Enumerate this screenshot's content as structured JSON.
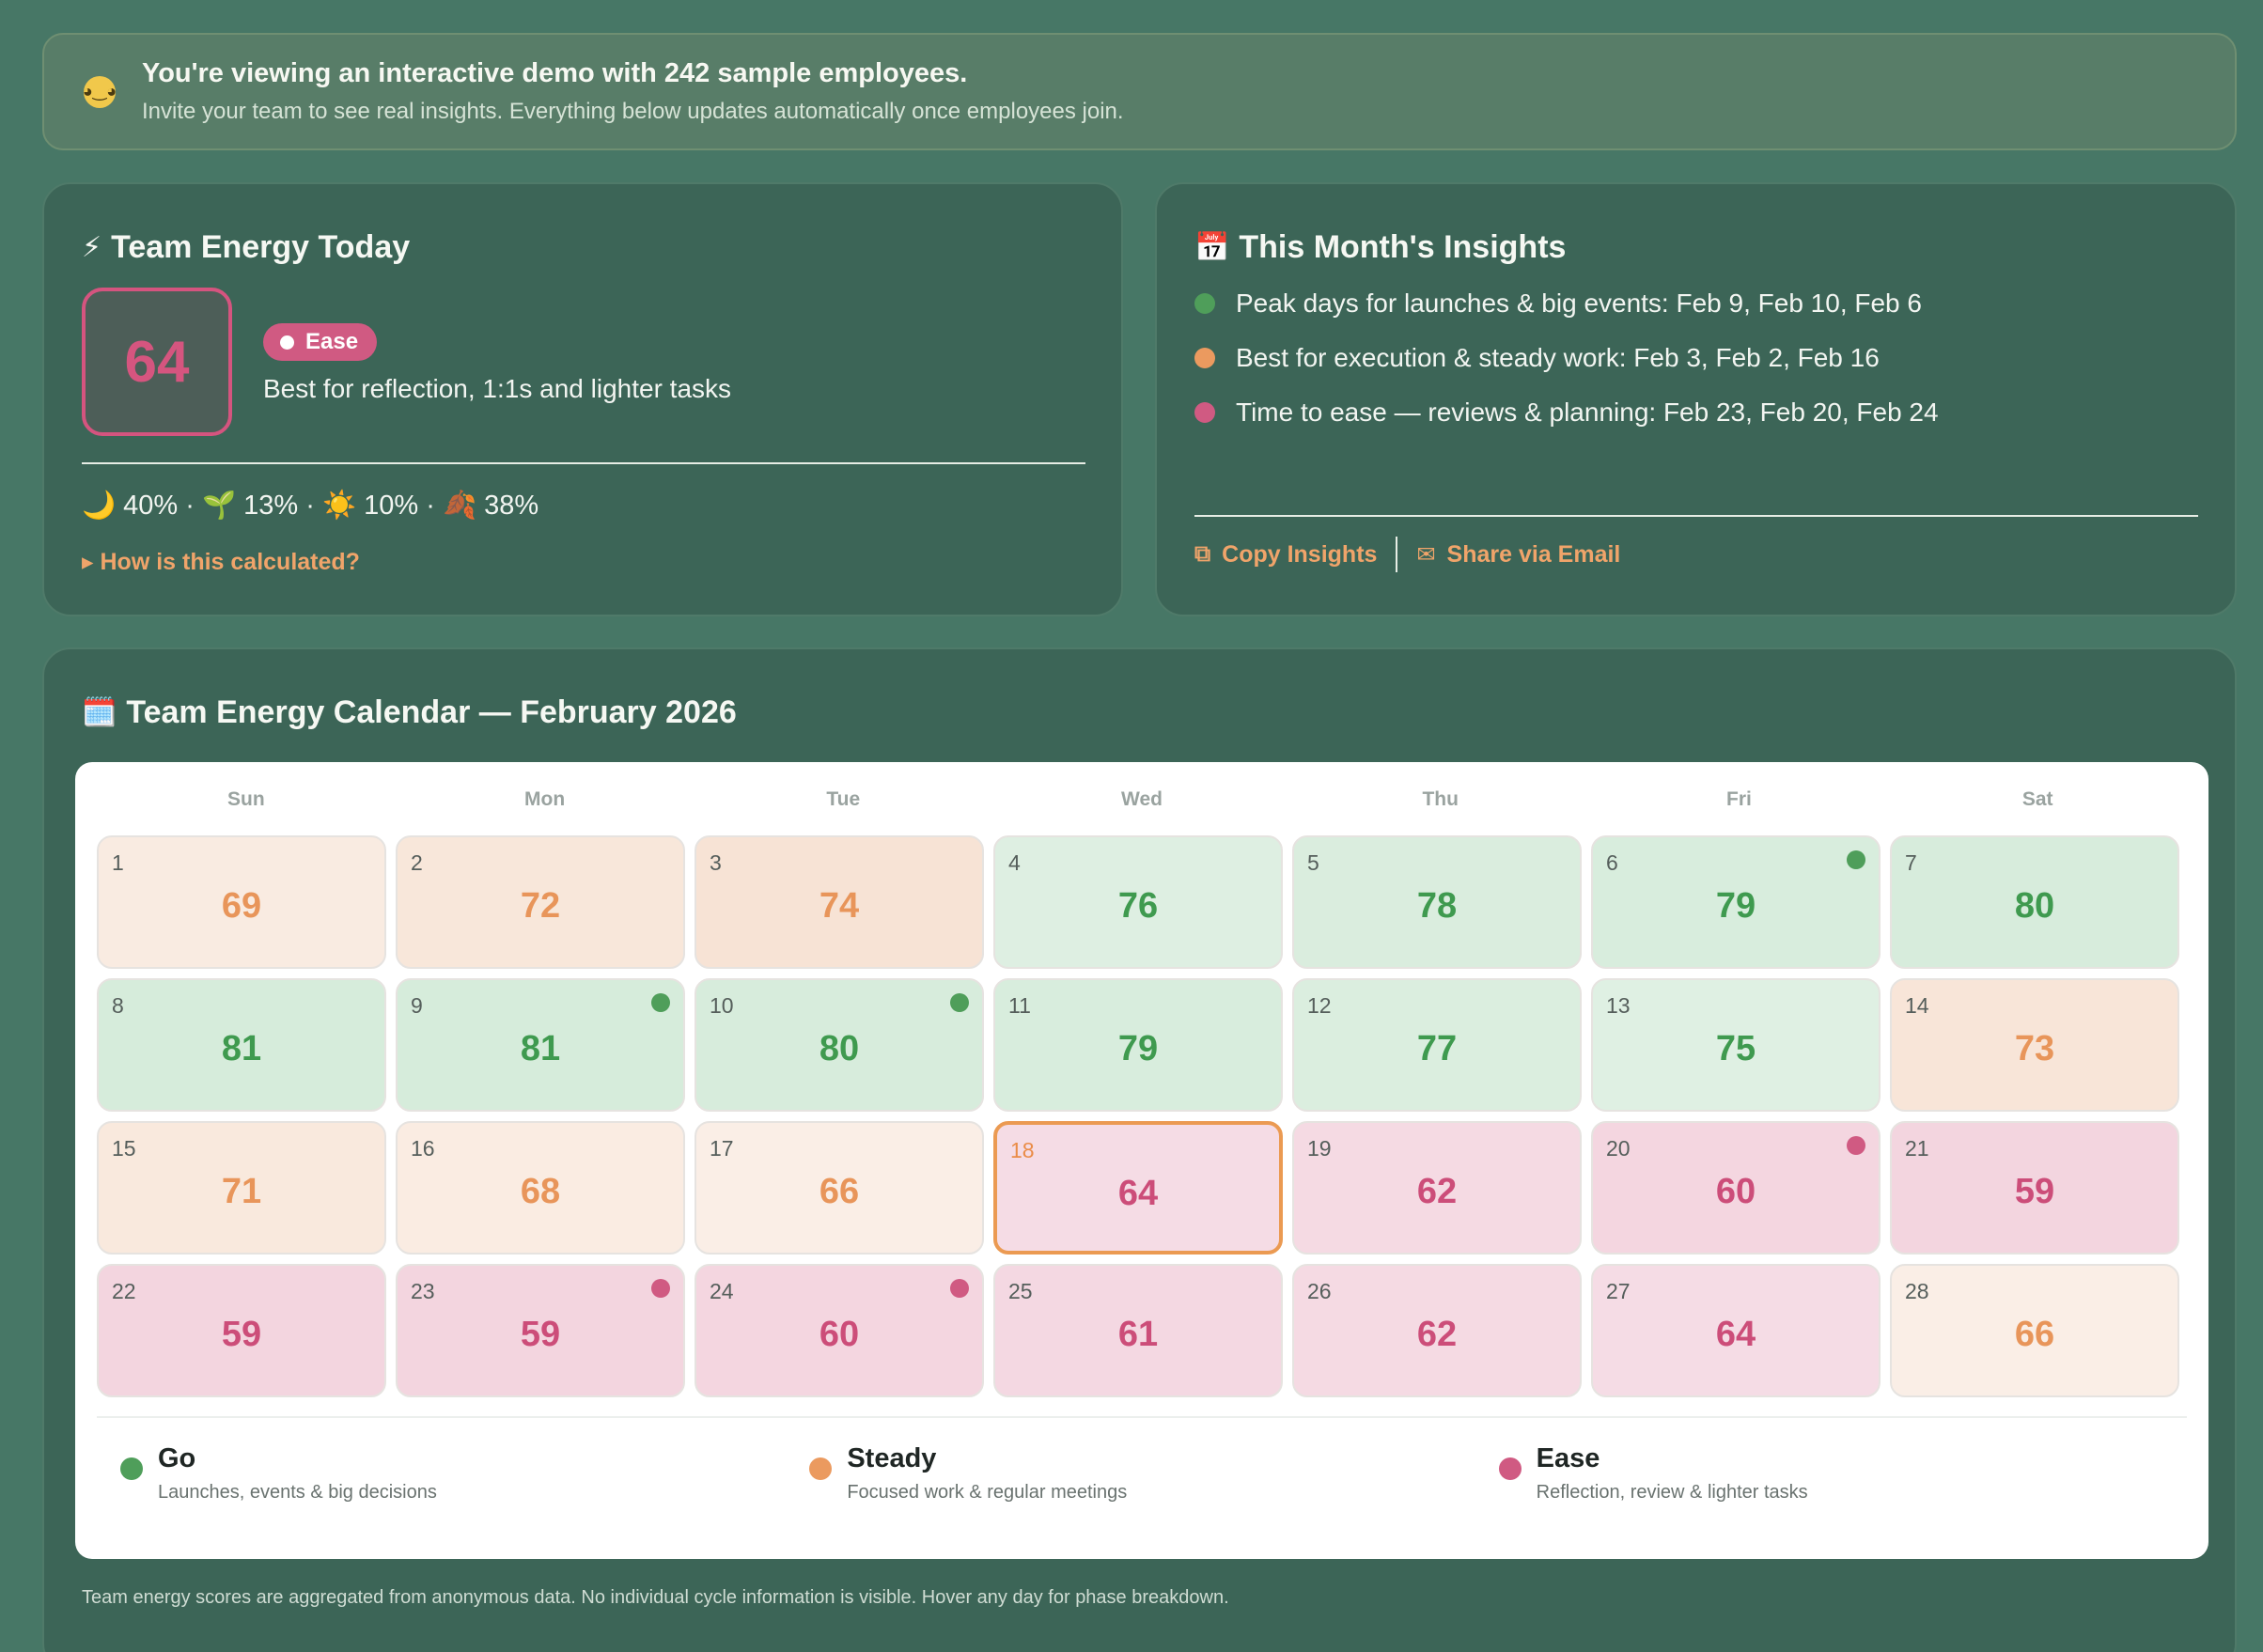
{
  "banner": {
    "emoji": "🤓",
    "title": "You're viewing an interactive demo with 242 sample employees.",
    "subtitle": "Invite your team to see real insights. Everything below updates automatically once employees join."
  },
  "energy_today": {
    "icon": "⚡",
    "title": "Team Energy Today",
    "score": "64",
    "phase": "Ease",
    "description": "Best for reflection, 1:1s and lighter tasks",
    "mix": "🌙 40% · 🌱 13% · ☀️ 10% · 🍂 38%",
    "how_link": "▸ How is this calculated?"
  },
  "insights": {
    "icon": "📅",
    "title": "This Month's Insights",
    "items": [
      {
        "text": "Peak days for launches & big events: Feb 9, Feb 10, Feb 6",
        "color": "#4f9e5a"
      },
      {
        "text": "Best for execution & steady work: Feb 3, Feb 2, Feb 16",
        "color": "#eb9a5f"
      },
      {
        "text": "Time to ease — reviews & planning: Feb 23, Feb 20, Feb 24",
        "color": "#d05a82"
      }
    ],
    "copy_label": "Copy Insights",
    "share_label": "Share via Email"
  },
  "calendar": {
    "icon": "🗓️",
    "title": "Team Energy Calendar — February 2026",
    "weekdays": [
      "Sun",
      "Mon",
      "Tue",
      "Wed",
      "Thu",
      "Fri",
      "Sat"
    ],
    "days": [
      {
        "day": "1",
        "score": "69",
        "phase": "steady",
        "tint": 0.35
      },
      {
        "day": "2",
        "score": "72",
        "phase": "steady",
        "tint": 0.6
      },
      {
        "day": "3",
        "score": "74",
        "phase": "steady",
        "tint": 0.8
      },
      {
        "day": "4",
        "score": "76",
        "phase": "go",
        "tint": 0.55
      },
      {
        "day": "5",
        "score": "78",
        "phase": "go",
        "tint": 0.75
      },
      {
        "day": "6",
        "score": "79",
        "phase": "go",
        "tint": 0.8,
        "peak": true
      },
      {
        "day": "7",
        "score": "80",
        "phase": "go",
        "tint": 0.85
      },
      {
        "day": "8",
        "score": "81",
        "phase": "go",
        "tint": 0.9
      },
      {
        "day": "9",
        "score": "81",
        "phase": "go",
        "tint": 0.9,
        "peak": true
      },
      {
        "day": "10",
        "score": "80",
        "phase": "go",
        "tint": 0.85,
        "peak": true
      },
      {
        "day": "11",
        "score": "79",
        "phase": "go",
        "tint": 0.8
      },
      {
        "day": "12",
        "score": "77",
        "phase": "go",
        "tint": 0.7
      },
      {
        "day": "13",
        "score": "75",
        "phase": "go",
        "tint": 0.5
      },
      {
        "day": "14",
        "score": "73",
        "phase": "steady",
        "tint": 0.7
      },
      {
        "day": "15",
        "score": "71",
        "phase": "steady",
        "tint": 0.5
      },
      {
        "day": "16",
        "score": "68",
        "phase": "steady",
        "tint": 0.3
      },
      {
        "day": "17",
        "score": "66",
        "phase": "steady",
        "tint": 0.15
      },
      {
        "day": "18",
        "score": "64",
        "phase": "ease",
        "tint": 0.45,
        "today": true
      },
      {
        "day": "19",
        "score": "62",
        "phase": "ease",
        "tint": 0.6
      },
      {
        "day": "20",
        "score": "60",
        "phase": "ease",
        "tint": 0.8,
        "peak": true
      },
      {
        "day": "21",
        "score": "59",
        "phase": "ease",
        "tint": 0.9
      },
      {
        "day": "22",
        "score": "59",
        "phase": "ease",
        "tint": 0.9
      },
      {
        "day": "23",
        "score": "59",
        "phase": "ease",
        "tint": 0.9,
        "peak": true
      },
      {
        "day": "24",
        "score": "60",
        "phase": "ease",
        "tint": 0.8,
        "peak": true
      },
      {
        "day": "25",
        "score": "61",
        "phase": "ease",
        "tint": 0.7
      },
      {
        "day": "26",
        "score": "62",
        "phase": "ease",
        "tint": 0.6
      },
      {
        "day": "27",
        "score": "64",
        "phase": "ease",
        "tint": 0.45
      },
      {
        "day": "28",
        "score": "66",
        "phase": "steady",
        "tint": 0.15
      }
    ],
    "legend": [
      {
        "name": "Go",
        "desc": "Launches, events & big decisions",
        "color": "#4f9e5a"
      },
      {
        "name": "Steady",
        "desc": "Focused work & regular meetings",
        "color": "#eb9a5f"
      },
      {
        "name": "Ease",
        "desc": "Reflection, review & lighter tasks",
        "color": "#d05a82"
      }
    ],
    "footnote": "Team energy scores are aggregated from anonymous data. No individual cycle information is visible. Hover any day for phase breakdown."
  },
  "colors": {
    "go_text": "#3f9a4f",
    "steady_text": "#e8955a",
    "ease_text": "#cc4d79",
    "go_bg_light": "#eaf4ec",
    "go_bg_dark": "#d4ebd9",
    "steady_bg_light": "#fbf1ea",
    "steady_bg_dark": "#f6e0d0",
    "ease_bg_light": "#f7e4ea",
    "ease_bg_dark": "#f3d3de"
  }
}
